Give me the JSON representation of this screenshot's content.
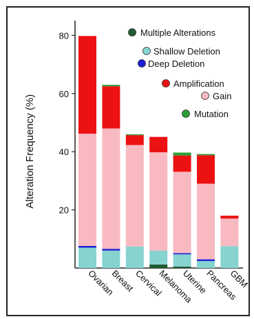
{
  "chart_data": {
    "type": "bar",
    "stacked": true,
    "title": "",
    "xlabel": "",
    "ylabel": "Alteration Frequency (%)",
    "ylim": [
      0,
      85
    ],
    "yticks": [
      20,
      40,
      60,
      80
    ],
    "categories": [
      "Ovarian",
      "Breast",
      "Cervical",
      "Melanoma",
      "Uterine",
      "Pancreas",
      "GBM"
    ],
    "series": [
      {
        "name": "Multiple Alterations",
        "color": "#1f5b33",
        "values": [
          0,
          0,
          0,
          1.2,
          0.5,
          0,
          0
        ]
      },
      {
        "name": "Shallow Deletion",
        "color": "#86d3d0",
        "values": [
          7.0,
          6.0,
          7.4,
          4.8,
          4.2,
          2.4,
          7.5
        ]
      },
      {
        "name": "Deep Deletion",
        "color": "#1b1fd4",
        "values": [
          0.6,
          0.6,
          0,
          0,
          0.4,
          0.6,
          0
        ]
      },
      {
        "name": "Gain",
        "color": "#f8b9c1",
        "values": [
          38.6,
          41.4,
          34.9,
          33.8,
          28.0,
          26.0,
          9.5
        ]
      },
      {
        "name": "Amplification",
        "color": "#ec1212",
        "values": [
          33.6,
          14.5,
          3.4,
          5.3,
          5.6,
          9.8,
          1.0
        ]
      },
      {
        "name": "Mutation",
        "color": "#2d9e34",
        "values": [
          0,
          0.5,
          0.3,
          0,
          1.0,
          0.4,
          0
        ]
      }
    ],
    "legend": {
      "placement": "top-right",
      "entries": [
        {
          "label": "Multiple Alterations",
          "color": "#1f5b33"
        },
        {
          "label": "Shallow Deletion",
          "color": "#86d3d0"
        },
        {
          "label": "Deep Deletion",
          "color": "#1b1fd4"
        },
        {
          "label": "Amplification",
          "color": "#ec1212"
        },
        {
          "label": "Gain",
          "color": "#f8b9c1"
        },
        {
          "label": "Mutation",
          "color": "#2d9e34"
        }
      ]
    }
  }
}
